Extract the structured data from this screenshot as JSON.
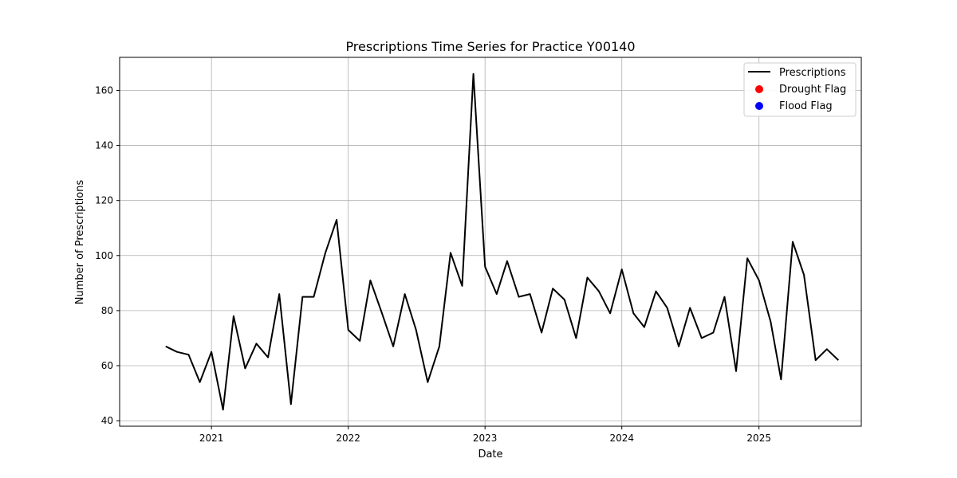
{
  "chart_data": {
    "type": "line",
    "title": "Prescriptions Time Series for Practice Y00140",
    "xlabel": "Date",
    "ylabel": "Number of Prescriptions",
    "xlim": [
      "2020-05-01",
      "2025-10-01"
    ],
    "ylim": [
      38,
      172
    ],
    "x_ticks": [
      "2021",
      "2022",
      "2023",
      "2024",
      "2025"
    ],
    "y_ticks": [
      40,
      60,
      80,
      100,
      120,
      140,
      160
    ],
    "grid": true,
    "legend_position": "top-right",
    "series": [
      {
        "name": "Prescriptions",
        "color": "#000000",
        "marker": "line",
        "x": [
          "2020-09-01",
          "2020-10-01",
          "2020-11-01",
          "2020-12-01",
          "2021-01-01",
          "2021-02-01",
          "2021-03-01",
          "2021-04-01",
          "2021-05-01",
          "2021-06-01",
          "2021-07-01",
          "2021-08-01",
          "2021-09-01",
          "2021-10-01",
          "2021-11-01",
          "2021-12-01",
          "2022-01-01",
          "2022-02-01",
          "2022-03-01",
          "2022-04-01",
          "2022-05-01",
          "2022-06-01",
          "2022-07-01",
          "2022-08-01",
          "2022-09-01",
          "2022-10-01",
          "2022-11-01",
          "2022-12-01",
          "2023-01-01",
          "2023-02-01",
          "2023-03-01",
          "2023-04-01",
          "2023-05-01",
          "2023-06-01",
          "2023-07-01",
          "2023-08-01",
          "2023-09-01",
          "2023-10-01",
          "2023-11-01",
          "2023-12-01",
          "2024-01-01",
          "2024-02-01",
          "2024-03-01",
          "2024-04-01",
          "2024-05-01",
          "2024-06-01",
          "2024-07-01",
          "2024-08-01",
          "2024-09-01",
          "2024-10-01",
          "2024-11-01",
          "2024-12-01",
          "2025-01-01",
          "2025-02-01",
          "2025-03-01",
          "2025-04-01",
          "2025-05-01",
          "2025-06-01",
          "2025-07-01",
          "2025-08-01"
        ],
        "values": [
          67,
          65,
          64,
          54,
          65,
          44,
          78,
          59,
          68,
          63,
          86,
          46,
          85,
          85,
          101,
          113,
          73,
          69,
          91,
          79,
          67,
          86,
          73,
          54,
          67,
          101,
          89,
          166,
          96,
          86,
          98,
          85,
          86,
          72,
          88,
          84,
          70,
          92,
          87,
          79,
          95,
          79,
          74,
          87,
          81,
          67,
          81,
          70,
          72,
          85,
          58,
          99,
          91,
          76,
          55,
          105,
          93,
          62,
          66,
          62
        ]
      },
      {
        "name": "Drought Flag",
        "color": "#ff0000",
        "marker": "circle",
        "x": [],
        "values": []
      },
      {
        "name": "Flood Flag",
        "color": "#0000ff",
        "marker": "circle",
        "x": [],
        "values": []
      }
    ]
  }
}
